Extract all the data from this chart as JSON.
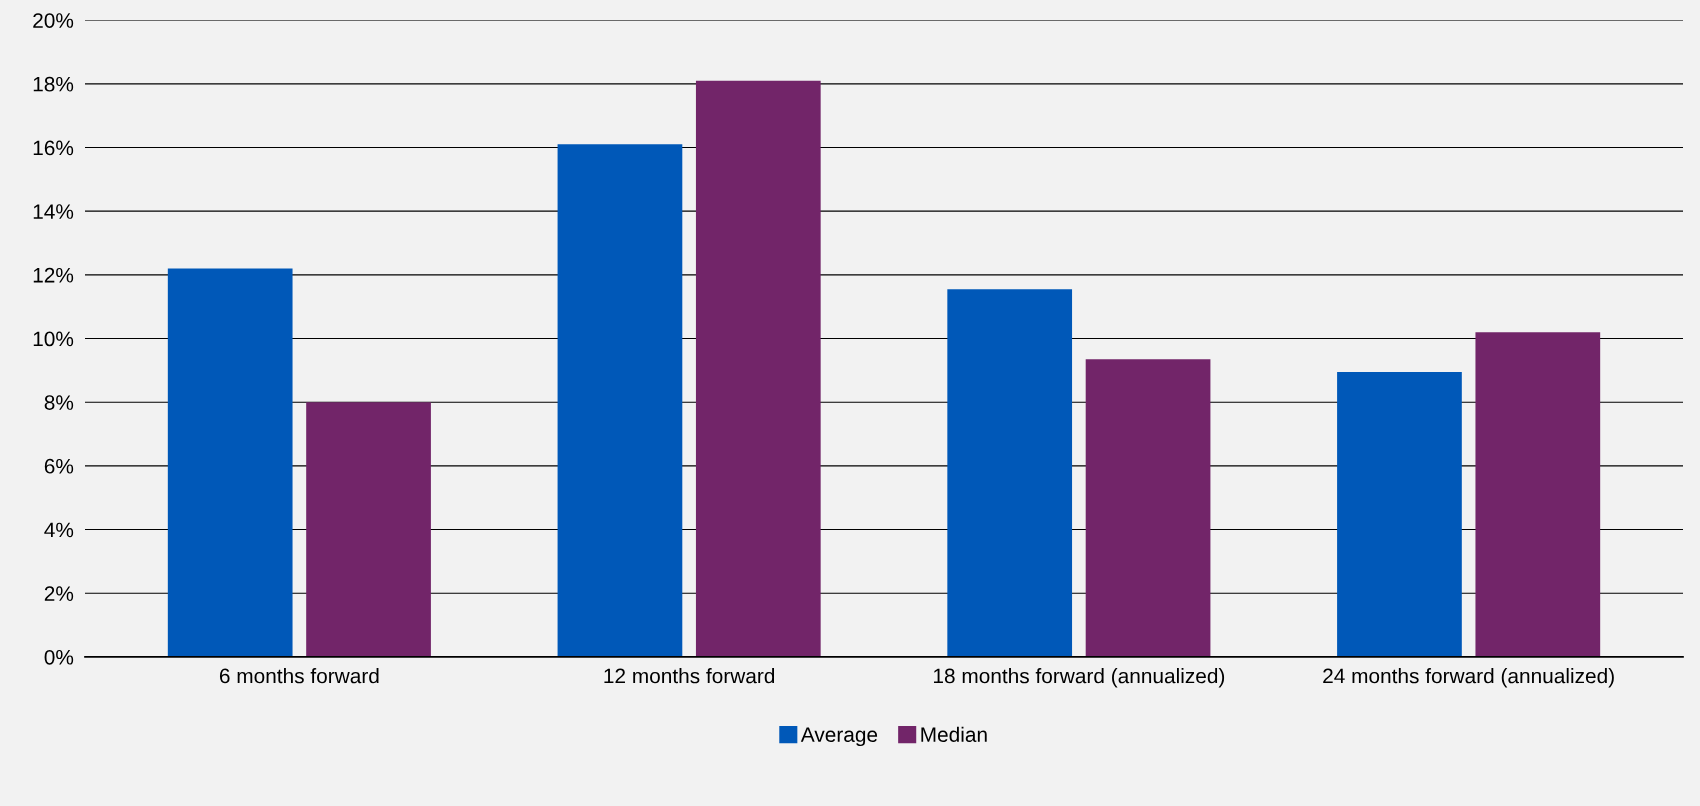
{
  "chart_data": {
    "type": "bar",
    "categories": [
      "6 months forward",
      "12 months forward",
      "18 months forward (annualized)",
      "24 months forward (annualized)"
    ],
    "series": [
      {
        "name": "Average",
        "color": "#0058b8",
        "values": [
          12.2,
          16.1,
          11.55,
          8.95
        ]
      },
      {
        "name": "Median",
        "color": "#722569",
        "values": [
          8.0,
          18.1,
          9.35,
          10.2
        ]
      }
    ],
    "ylim": [
      0,
      20
    ],
    "yticks": [
      {
        "value": 0,
        "label": "0%"
      },
      {
        "value": 2,
        "label": "2%"
      },
      {
        "value": 4,
        "label": "4%"
      },
      {
        "value": 6,
        "label": "6%"
      },
      {
        "value": 8,
        "label": "8%"
      },
      {
        "value": 10,
        "label": "10%"
      },
      {
        "value": 12,
        "label": "12%"
      },
      {
        "value": 14,
        "label": "14%"
      },
      {
        "value": 16,
        "label": "16%"
      },
      {
        "value": 18,
        "label": "18%"
      },
      {
        "value": 20,
        "label": "20%"
      }
    ],
    "grid": "y",
    "legend": "bottom"
  }
}
